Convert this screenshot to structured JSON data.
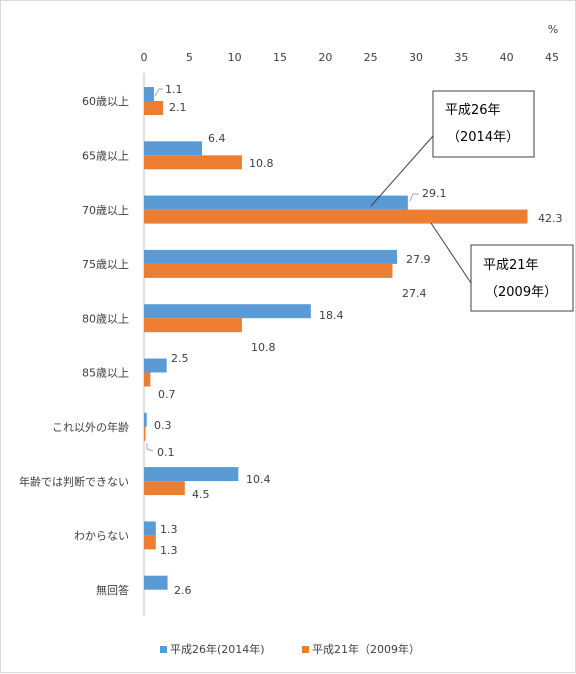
{
  "chart_data": {
    "type": "bar",
    "orientation": "horizontal",
    "x_unit_label": "%",
    "xlim": [
      0,
      45
    ],
    "x_ticks": [
      0,
      5,
      10,
      15,
      20,
      25,
      30,
      35,
      40,
      45
    ],
    "grid": false,
    "legend_position": "bottom",
    "categories": [
      "60歳以上",
      "65歳以上",
      "70歳以上",
      "75歳以上",
      "80歳以上",
      "85歳以上",
      "これ以外の年齢",
      "年齢では判断できない",
      "わからない",
      "無回答"
    ],
    "series": [
      {
        "name": "平成26年(2014年)",
        "color": "#5b9bd5",
        "values": [
          1.1,
          6.4,
          29.1,
          27.9,
          18.4,
          2.5,
          0.3,
          10.4,
          1.3,
          2.6
        ]
      },
      {
        "name": "平成21年（2009年）",
        "color": "#ed7d31",
        "values": [
          2.1,
          10.8,
          42.3,
          27.4,
          10.8,
          0.7,
          0.1,
          4.5,
          1.3,
          null
        ]
      }
    ],
    "annotations": [
      {
        "line1": "平成26年",
        "line2": "（2014年）",
        "series": 0
      },
      {
        "line1": "平成21年",
        "line2": "（2009年）",
        "series": 1
      }
    ]
  }
}
